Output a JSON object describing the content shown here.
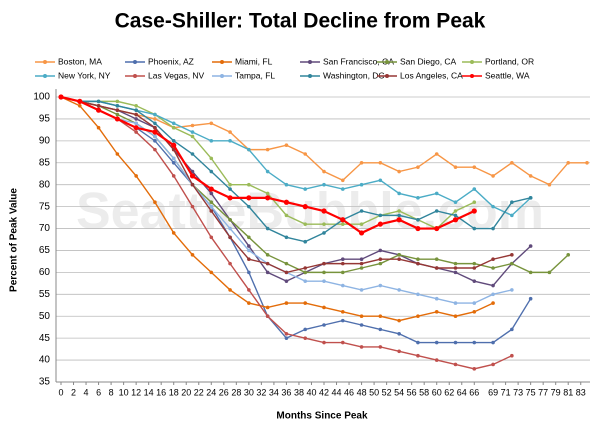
{
  "chart_data": {
    "type": "line",
    "title": "Case-Shiller: Total Decline from Peak",
    "watermark": "SeattleBubble.com",
    "x_label": "Months Since Peak",
    "y_label": "Percent of Peak Value",
    "x": [
      0,
      3,
      6,
      9,
      12,
      15,
      18,
      21,
      24,
      27,
      30,
      33,
      36,
      39,
      42,
      45,
      48,
      51,
      54,
      57,
      60,
      63,
      66,
      69,
      72,
      75,
      78,
      81,
      84
    ],
    "xlim": [
      0,
      84
    ],
    "xticks": [
      0,
      2,
      4,
      6,
      8,
      10,
      12,
      14,
      16,
      18,
      20,
      22,
      24,
      26,
      28,
      30,
      32,
      34,
      36,
      38,
      40,
      42,
      44,
      46,
      48,
      50,
      52,
      54,
      56,
      58,
      60,
      62,
      64,
      66,
      69,
      71,
      73,
      75,
      77,
      79,
      81,
      83
    ],
    "ylim": [
      35,
      100
    ],
    "yticks": [
      35,
      40,
      45,
      50,
      55,
      60,
      65,
      70,
      75,
      80,
      85,
      90,
      95,
      100
    ],
    "grid": true,
    "series": [
      {
        "name": "Boston, MA",
        "color": "#f79646",
        "values": [
          100,
          99,
          98,
          97,
          96,
          95,
          93,
          93.5,
          94,
          92,
          88,
          88,
          89,
          87,
          83,
          81,
          85,
          85,
          83,
          84,
          87,
          84,
          84,
          82,
          85,
          82,
          80,
          85,
          85
        ]
      },
      {
        "name": "Phoenix, AZ",
        "color": "#4f6fad",
        "values": [
          100,
          99,
          97,
          95,
          93,
          90,
          85,
          80,
          75,
          68,
          60,
          50,
          45,
          47,
          48,
          49,
          48,
          47,
          46,
          44,
          44,
          44,
          44,
          44,
          47,
          54,
          null,
          null,
          null
        ]
      },
      {
        "name": "Miami, FL",
        "color": "#e36c09",
        "values": [
          100,
          98,
          93,
          87,
          82,
          76,
          69,
          64,
          60,
          56,
          53,
          52,
          53,
          53,
          52,
          51,
          50,
          50,
          49,
          50,
          51,
          50,
          51,
          53,
          null,
          null,
          null,
          null,
          null
        ]
      },
      {
        "name": "San Francisco, CA",
        "color": "#604a7b",
        "values": [
          100,
          99,
          98,
          97,
          95,
          93,
          88,
          83,
          78,
          72,
          66,
          60,
          58,
          60,
          62,
          63,
          63,
          65,
          64,
          62,
          61,
          60,
          58,
          57,
          62,
          66,
          null,
          null,
          null
        ]
      },
      {
        "name": "San Diego, CA",
        "color": "#77933c",
        "values": [
          100,
          99,
          98,
          96,
          94,
          91,
          86,
          80,
          76,
          72,
          68,
          64,
          62,
          60,
          60,
          60,
          61,
          62,
          64,
          63,
          63,
          62,
          62,
          61,
          62,
          60,
          60,
          64,
          null
        ]
      },
      {
        "name": "Portland, OR",
        "color": "#9bbb59",
        "values": [
          100,
          99,
          99,
          99,
          98,
          96,
          93,
          91,
          86,
          80,
          80,
          78,
          73,
          71,
          71,
          71,
          71,
          73,
          74,
          72,
          70,
          74,
          76,
          null,
          null,
          null,
          null,
          null,
          null
        ]
      },
      {
        "name": "New York, NY",
        "color": "#4bacc6",
        "values": [
          100,
          99,
          99,
          98,
          97,
          96,
          94,
          92,
          90,
          90,
          88,
          83,
          80,
          79,
          80,
          79,
          80,
          81,
          78,
          77,
          78,
          76,
          79,
          75,
          73,
          77,
          null,
          null,
          null
        ]
      },
      {
        "name": "Las Vegas, NV",
        "color": "#c0504d",
        "values": [
          100,
          99,
          97,
          95,
          92,
          88,
          82,
          75,
          68,
          62,
          56,
          50,
          46,
          45,
          44,
          44,
          43,
          43,
          42,
          41,
          40,
          39,
          38,
          39,
          41,
          null,
          null,
          null,
          null
        ]
      },
      {
        "name": "Tampa, FL",
        "color": "#8eb4e3",
        "values": [
          100,
          99,
          97,
          95,
          94,
          91,
          86,
          80,
          75,
          70,
          65,
          62,
          60,
          58,
          58,
          57,
          56,
          57,
          56,
          55,
          54,
          53,
          53,
          55,
          56,
          null,
          null,
          null,
          null
        ]
      },
      {
        "name": "Washington, DC",
        "color": "#31859c",
        "values": [
          100,
          99,
          99,
          98,
          97,
          94,
          90,
          87,
          83,
          79,
          75,
          70,
          68,
          67,
          69,
          72,
          74,
          73,
          73,
          72,
          74,
          73,
          70,
          70,
          76,
          77,
          null,
          null,
          null
        ]
      },
      {
        "name": "Los Angeles, CA",
        "color": "#953735",
        "values": [
          100,
          99,
          98,
          97,
          96,
          93,
          88,
          80,
          74,
          68,
          63,
          62,
          60,
          61,
          62,
          62,
          62,
          63,
          63,
          62,
          61,
          61,
          61,
          63,
          64,
          null,
          null,
          null,
          null
        ]
      },
      {
        "name": "Seattle, WA",
        "color": "#ff0000",
        "values": [
          100,
          99,
          97,
          95,
          93,
          92,
          89,
          82,
          79,
          77,
          77,
          77,
          76,
          75,
          74,
          72,
          69,
          71,
          72,
          70,
          70,
          72,
          74,
          null,
          null,
          null,
          null,
          null,
          null
        ]
      }
    ]
  }
}
